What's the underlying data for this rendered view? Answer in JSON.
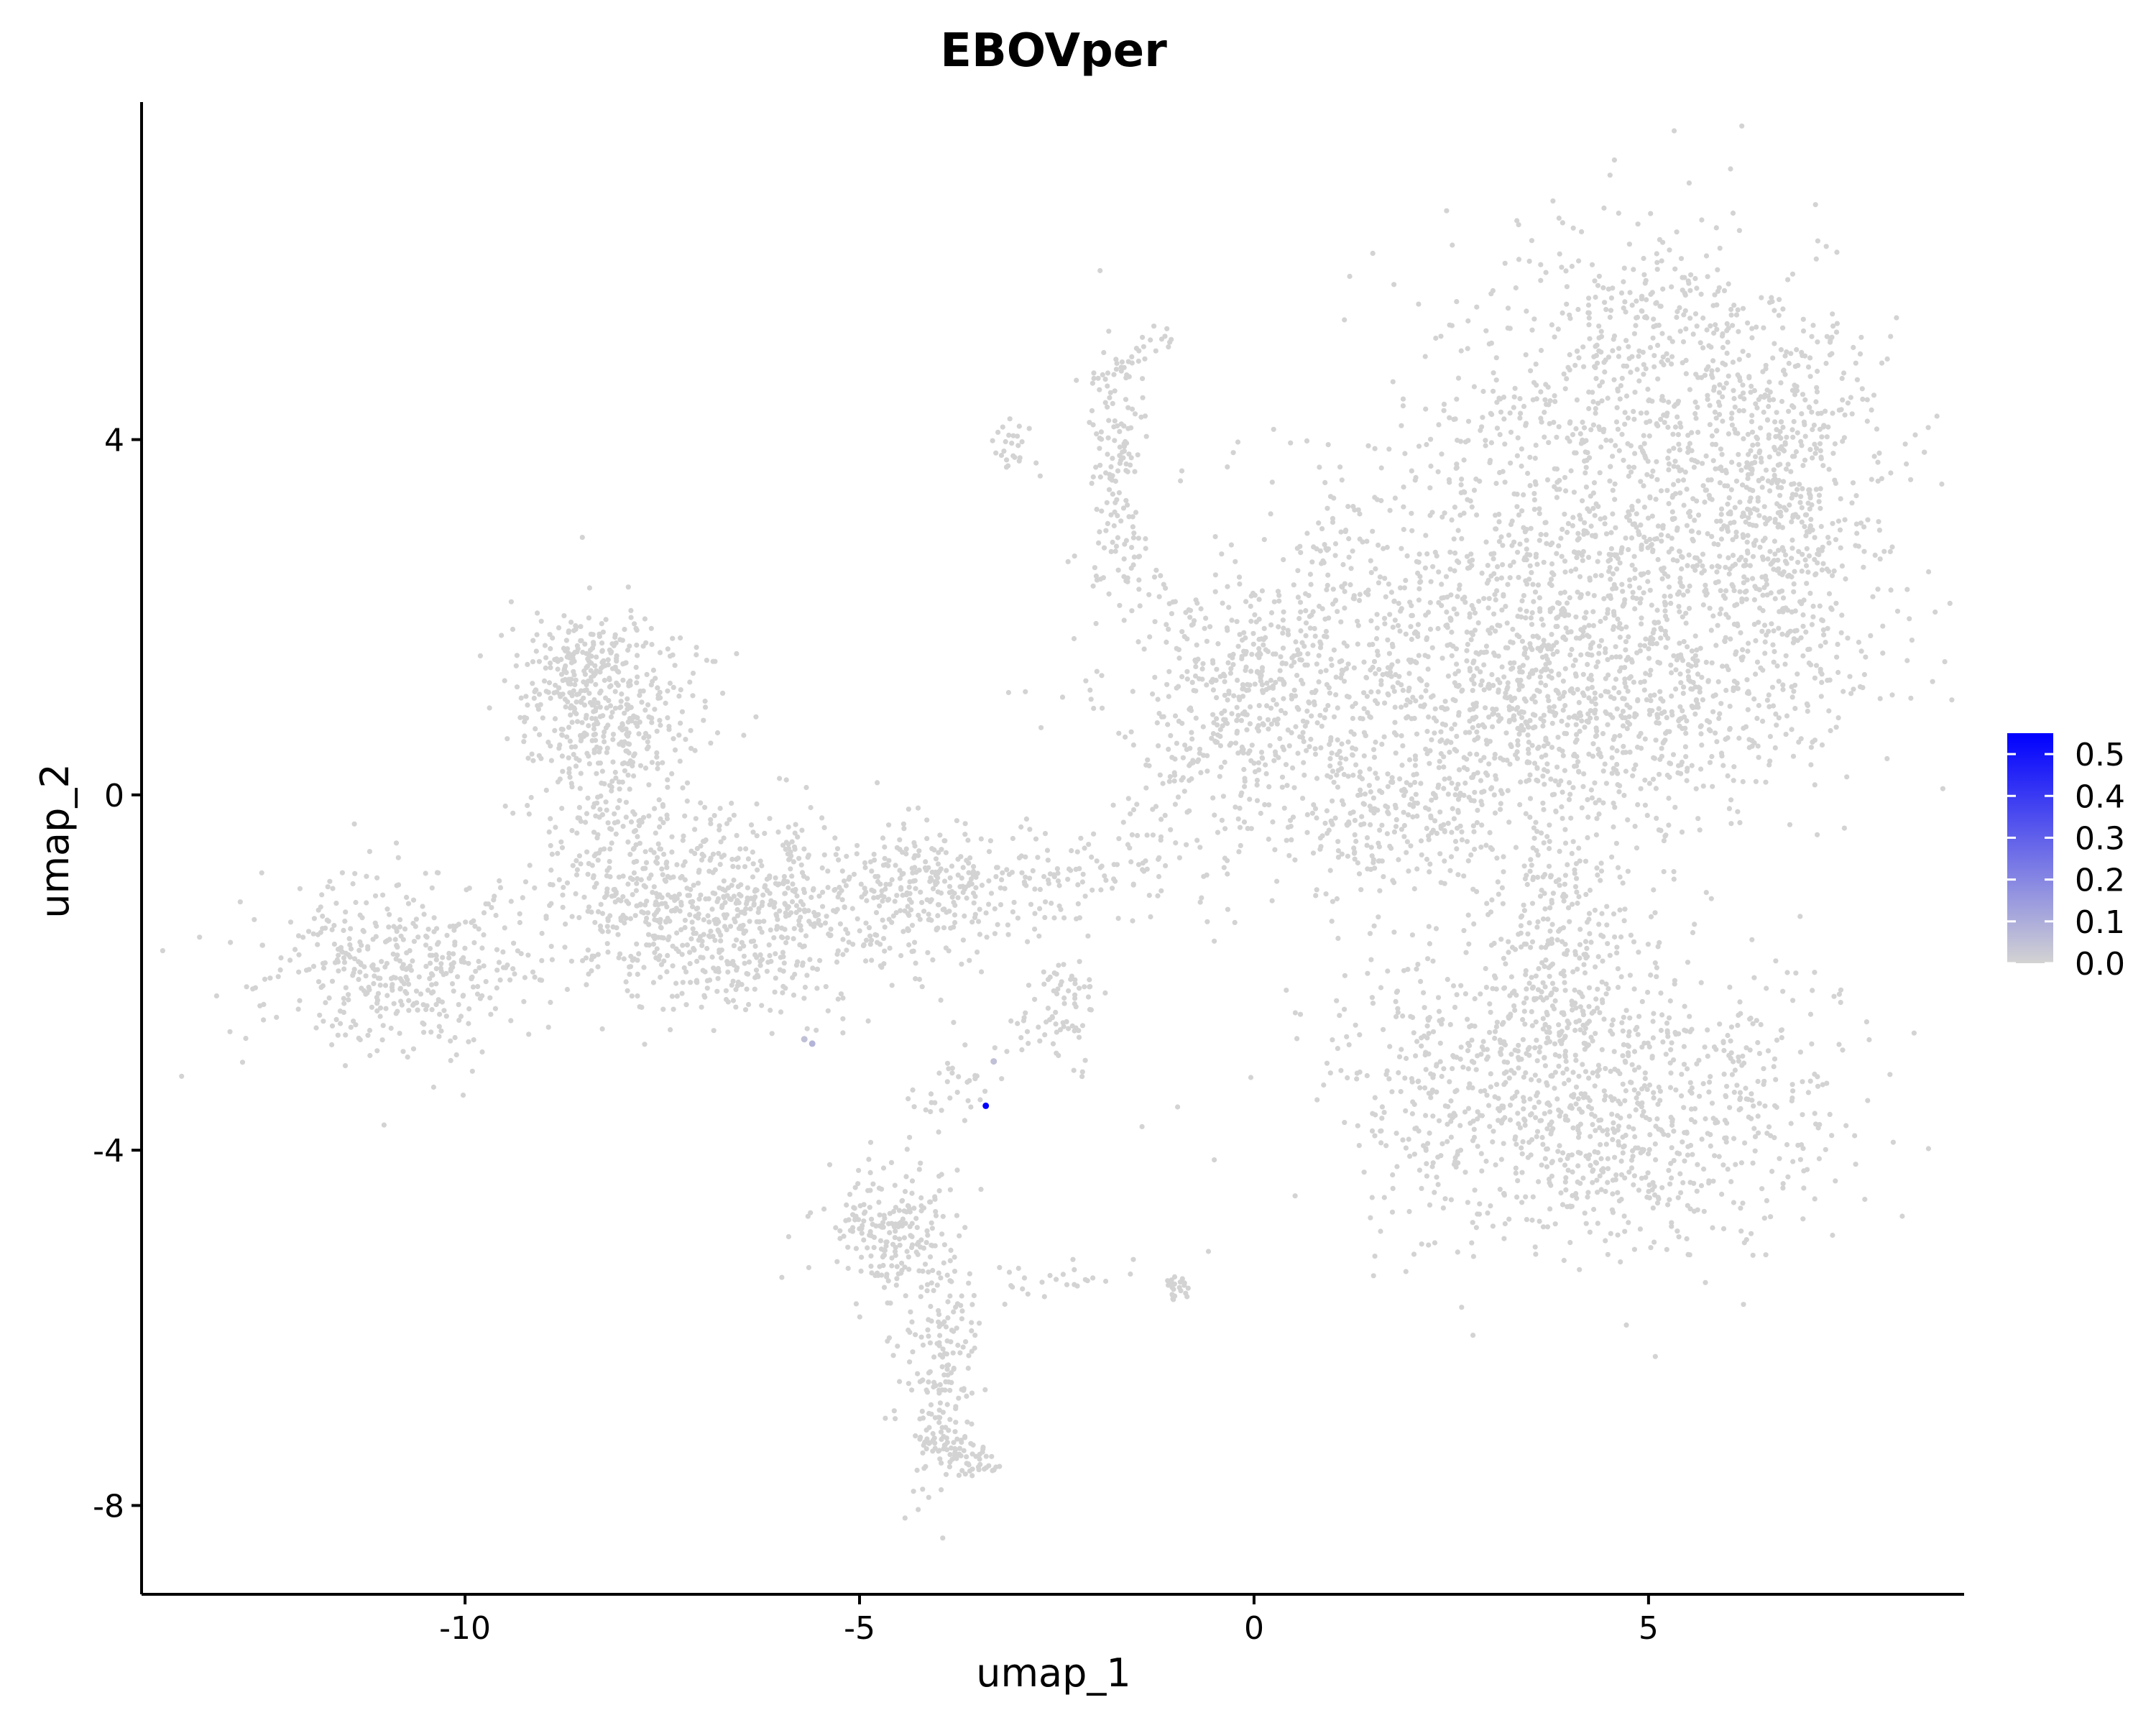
{
  "chart_data": {
    "type": "scatter",
    "title": "EBOVper",
    "xlabel": "umap_1",
    "ylabel": "umap_2",
    "xlim": [
      -14.1,
      9.0
    ],
    "ylim": [
      -9.0,
      7.8
    ],
    "x_ticks": [
      -10,
      -5,
      0,
      5
    ],
    "x_tick_labels": [
      "-10",
      "-5",
      "0",
      "5"
    ],
    "y_ticks": [
      -8,
      -4,
      0,
      4
    ],
    "y_tick_labels": [
      "-8",
      "-4",
      "0",
      "4"
    ],
    "grid": false,
    "legend": {
      "type": "colorbar",
      "placement": "right",
      "min": 0.0,
      "max": 0.55,
      "ticks": [
        0.0,
        0.1,
        0.2,
        0.3,
        0.4,
        0.5
      ],
      "tick_labels": [
        "0.0",
        "0.1",
        "0.2",
        "0.3",
        "0.4",
        "0.5"
      ],
      "low_color": "#d3d3d3",
      "high_color": "#0000ff"
    },
    "clusters": [
      {
        "name": "c1",
        "cx": 4.9,
        "cy": 4.8,
        "sx": 1.0,
        "sy": 0.9,
        "n": 450
      },
      {
        "name": "c2",
        "cx": 4.5,
        "cy": 2.4,
        "sx": 1.8,
        "sy": 1.3,
        "n": 1400
      },
      {
        "name": "c3",
        "cx": 6.7,
        "cy": 3.3,
        "sx": 0.6,
        "sy": 1.1,
        "n": 400
      },
      {
        "name": "c4",
        "cx": 4.3,
        "cy": 0.9,
        "sx": 1.2,
        "sy": 0.6,
        "n": 400
      },
      {
        "name": "c5",
        "cx": 1.5,
        "cy": 0.8,
        "sx": 1.6,
        "sy": 1.0,
        "n": 750
      },
      {
        "name": "c6",
        "cx": -0.3,
        "cy": 1.1,
        "sx": 0.5,
        "sy": 0.6,
        "n": 140
      },
      {
        "name": "c7",
        "cx": 1.7,
        "cy": -0.3,
        "sx": 0.6,
        "sy": 0.3,
        "n": 120
      },
      {
        "name": "c8",
        "cx": 3.9,
        "cy": -1.8,
        "sx": 0.5,
        "sy": 0.8,
        "n": 300
      },
      {
        "name": "c9",
        "cx": 4.5,
        "cy": -3.6,
        "sx": 1.5,
        "sy": 0.8,
        "n": 900
      },
      {
        "name": "c10",
        "cx": 2.4,
        "cy": -3.0,
        "sx": 0.7,
        "sy": 0.9,
        "n": 180
      },
      {
        "name": "c11",
        "cx": -8.2,
        "cy": 0.9,
        "sx": 0.6,
        "sy": 0.6,
        "n": 420
      },
      {
        "name": "c12",
        "cx": -8.0,
        "cy": -0.9,
        "sx": 0.6,
        "sy": 0.7,
        "n": 200
      },
      {
        "name": "c13",
        "cx": -6.6,
        "cy": -1.4,
        "sx": 0.9,
        "sy": 0.55,
        "n": 620
      },
      {
        "name": "c14",
        "cx": -10.8,
        "cy": -1.9,
        "sx": 0.9,
        "sy": 0.5,
        "n": 430
      },
      {
        "name": "c15",
        "cx": -4.3,
        "cy": -1.3,
        "sx": 0.6,
        "sy": 0.4,
        "n": 170
      },
      {
        "name": "c16",
        "cx": -4.6,
        "cy": -4.9,
        "sx": 0.4,
        "sy": 0.35,
        "n": 200
      },
      {
        "name": "c17",
        "cx": -4.0,
        "cy": -6.5,
        "sx": 0.25,
        "sy": 0.8,
        "n": 200
      },
      {
        "name": "c18",
        "cx": -2.4,
        "cy": -2.4,
        "sx": 0.2,
        "sy": 0.35,
        "n": 60
      },
      {
        "name": "c19",
        "cx": -1.0,
        "cy": -5.55,
        "sx": 0.07,
        "sy": 0.08,
        "n": 22
      },
      {
        "name": "c20",
        "cx": -3.0,
        "cy": 3.85,
        "sx": 0.12,
        "sy": 0.2,
        "n": 25
      },
      {
        "name": "c21",
        "cx": -1.7,
        "cy": 3.8,
        "sx": 0.2,
        "sy": 0.8,
        "n": 120
      },
      {
        "name": "c22",
        "cx": -8.5,
        "cy": 1.4,
        "sx": 0.3,
        "sy": 0.25,
        "n": 100
      }
    ],
    "paths": [
      {
        "name": "bridge-mid",
        "x0": -5.0,
        "y0": -0.85,
        "x1": -1.1,
        "y1": -0.85,
        "spread": 0.3,
        "n": 200
      },
      {
        "name": "bridge-right",
        "x0": -1.5,
        "y0": -0.7,
        "x1": 0.2,
        "y1": 1.0,
        "spread": 0.25,
        "n": 40
      },
      {
        "name": "lower-stream",
        "x0": -4.2,
        "y0": -3.6,
        "x1": -2.5,
        "y1": -2.3,
        "spread": 0.2,
        "n": 50
      },
      {
        "name": "stream-foot",
        "x0": -4.0,
        "y0": -7.2,
        "x1": -3.3,
        "y1": -7.6,
        "spread": 0.12,
        "n": 60
      },
      {
        "name": "lower-branch",
        "x0": -3.3,
        "y0": -5.5,
        "x1": -1.5,
        "y1": -5.4,
        "spread": 0.1,
        "n": 25
      },
      {
        "name": "upper-stream",
        "x0": -1.8,
        "y0": 3.0,
        "x1": -0.9,
        "y1": 1.8,
        "spread": 0.2,
        "n": 40
      },
      {
        "name": "upper-hook",
        "x0": -2.0,
        "y0": 4.6,
        "x1": -1.0,
        "y1": 5.2,
        "spread": 0.1,
        "n": 30
      },
      {
        "name": "diagonal-edge",
        "x0": -0.2,
        "y0": 0.8,
        "x1": 1.2,
        "y1": 3.2,
        "spread": 0.25,
        "n": 80
      }
    ],
    "highlighted_points": [
      {
        "x": -3.4,
        "y": -3.5,
        "value": 0.55
      },
      {
        "x": -5.6,
        "y": -2.8,
        "value": 0.08
      },
      {
        "x": -5.7,
        "y": -2.75,
        "value": 0.05
      },
      {
        "x": -3.3,
        "y": -3.0,
        "value": 0.05
      }
    ]
  }
}
